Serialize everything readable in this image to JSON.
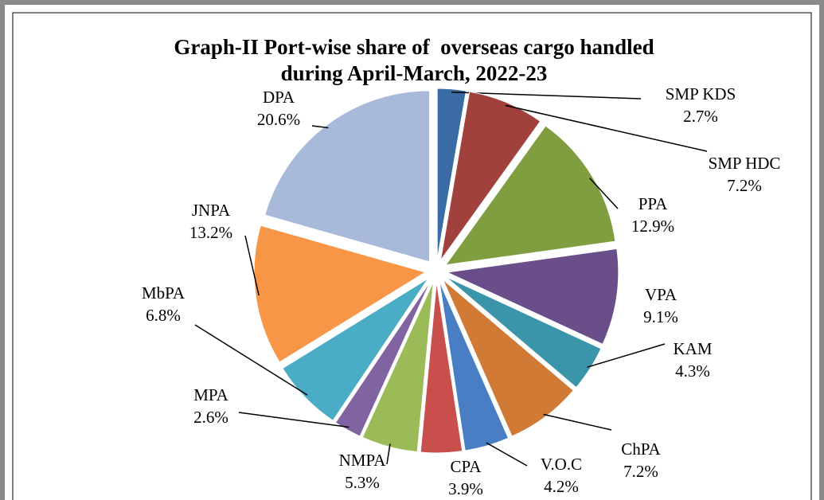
{
  "chart_data": {
    "type": "pie",
    "title": [
      "Graph-II Port-wise share of  overseas cargo handled",
      "during April-March, 2022-23"
    ],
    "categories": [
      "SMP KDS",
      "SMP HDC",
      "PPA",
      "VPA",
      "KAM",
      "ChPA",
      "V.O.C",
      "CPA",
      "NMPA",
      "MPA",
      "MbPA",
      "JNPA",
      "DPA"
    ],
    "values": [
      2.7,
      7.2,
      12.9,
      9.1,
      4.3,
      7.2,
      4.2,
      3.9,
      5.3,
      2.6,
      6.8,
      13.2,
      20.6
    ],
    "value_labels": [
      "2.7%",
      "7.2%",
      "12.9%",
      "9.1%",
      "4.3%",
      "7.2%",
      "4.2%",
      "3.9%",
      "5.3%",
      "2.6%",
      "6.8%",
      "13.2%",
      "20.6%"
    ],
    "colors": [
      "#3A6BA5",
      "#A0413E",
      "#7F9E3F",
      "#6A4E8A",
      "#3B95AA",
      "#D07A36",
      "#4A7EC4",
      "#C94F4D",
      "#9BBB59",
      "#8064A2",
      "#4BACC6",
      "#F79646",
      "#A9B9D9"
    ]
  }
}
